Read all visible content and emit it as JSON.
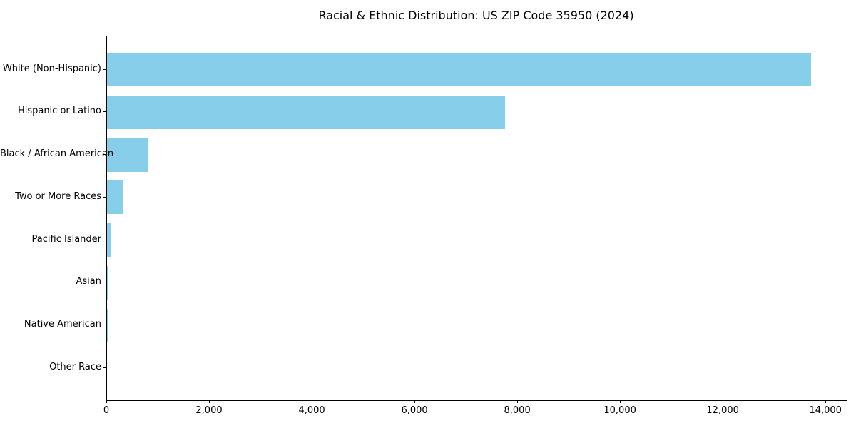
{
  "title": "Racial & Ethnic Distribution: US ZIP Code 35950 (2024)",
  "chart_data": {
    "type": "bar",
    "orientation": "horizontal",
    "title": "Racial & Ethnic Distribution: US ZIP Code 35950 (2024)",
    "xlabel": "",
    "ylabel": "",
    "categories": [
      "White (Non-Hispanic)",
      "Hispanic or Latino",
      "Black / African American",
      "Two or More Races",
      "Pacific Islander",
      "Asian",
      "Native American",
      "Other Race"
    ],
    "values": [
      13700,
      7750,
      800,
      310,
      70,
      15,
      10,
      0
    ],
    "xlim": [
      0,
      14400
    ],
    "x_ticks": [
      0,
      2000,
      4000,
      6000,
      8000,
      10000,
      12000,
      14000
    ],
    "x_tick_labels": [
      "0",
      "2,000",
      "4,000",
      "6,000",
      "8,000",
      "10,000",
      "12,000",
      "14,000"
    ],
    "bar_color": "#87CEEB",
    "axis_color": "#000000",
    "text_color": "#000000",
    "grid": false,
    "legend": false
  }
}
